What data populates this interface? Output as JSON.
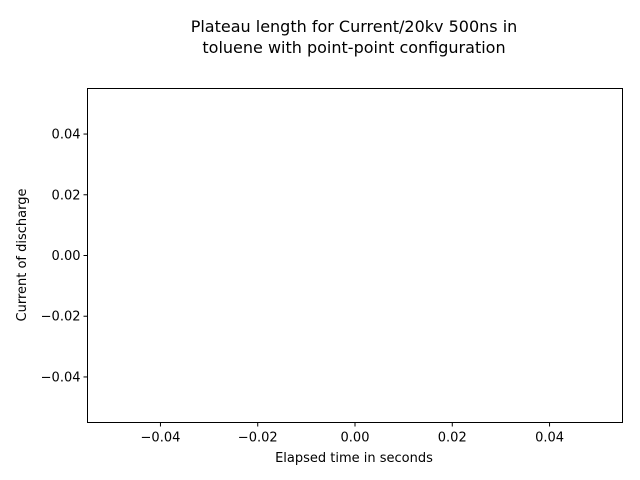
{
  "chart_data": {
    "type": "line",
    "title_lines": [
      "Plateau length for Current/20kv 500ns in",
      "toluene with point-point configuration"
    ],
    "xlabel": "Elapsed time in seconds",
    "ylabel": "Current of discharge",
    "xlim": [
      -0.055,
      0.055
    ],
    "ylim": [
      -0.055,
      0.055
    ],
    "xticks": [
      "−0.04",
      "−0.02",
      "0.00",
      "0.02",
      "0.04"
    ],
    "xtick_values": [
      -0.04,
      -0.02,
      0.0,
      0.02,
      0.04
    ],
    "yticks": [
      "−0.04",
      "−0.02",
      "0.00",
      "0.02",
      "0.04"
    ],
    "ytick_values": [
      -0.04,
      -0.02,
      0.0,
      0.02,
      0.04
    ],
    "series": [
      {
        "x": [],
        "y": []
      }
    ],
    "grid": false,
    "colors": {
      "axes": "#000000",
      "background": "#ffffff"
    }
  }
}
